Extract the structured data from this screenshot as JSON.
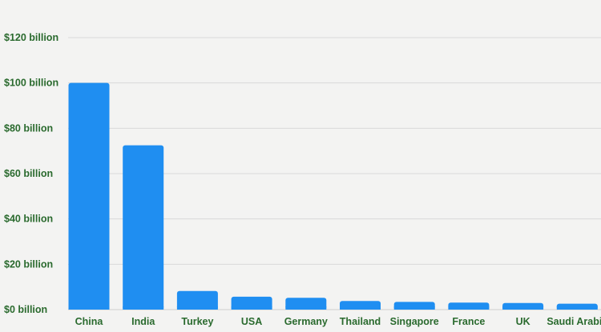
{
  "chart_data": {
    "type": "bar",
    "title": "",
    "xlabel": "",
    "ylabel": "",
    "categories": [
      "China",
      "India",
      "Turkey",
      "USA",
      "Germany",
      "Thailand",
      "Singapore",
      "France",
      "UK",
      "Saudi Arabia"
    ],
    "values": [
      100,
      72.5,
      8.2,
      5.7,
      5.2,
      3.8,
      3.4,
      3.1,
      2.9,
      2.6
    ],
    "ylim": [
      0,
      120
    ],
    "yticks": [
      0,
      20,
      40,
      60,
      80,
      100,
      120
    ],
    "ytick_labels": [
      "$0 billion",
      "$20 billion",
      "$40 billion",
      "$60 billion",
      "$80 billion",
      "$100 billion",
      "$120 billion"
    ],
    "grid": true,
    "legend": "none",
    "colors": {
      "bar": "#1f8ef1",
      "label": "#2a6a2e",
      "grid": "#d9d9d9",
      "background": "#f3f3f2"
    }
  }
}
